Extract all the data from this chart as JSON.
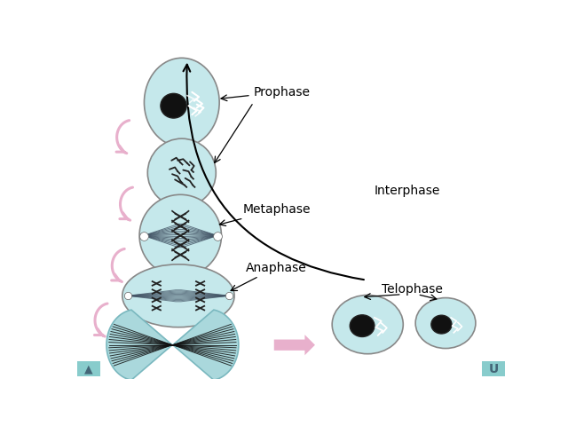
{
  "bg_color": "#ffffff",
  "cell_fill": "#c5e8eb",
  "cell_fill2": "#aad8dc",
  "cell_edge": "#7ab8bf",
  "nucleus_fill": "#111111",
  "arrow_color": "#000000",
  "pink_color": "#e8b0cc",
  "label_prophase": "Prophase",
  "label_metaphase": "Metaphase",
  "label_anaphase": "Anaphase",
  "label_telophase": "Telophase",
  "label_interphase": "Interphase",
  "label_fontsize": 10,
  "nav_bg": "#88cccc"
}
